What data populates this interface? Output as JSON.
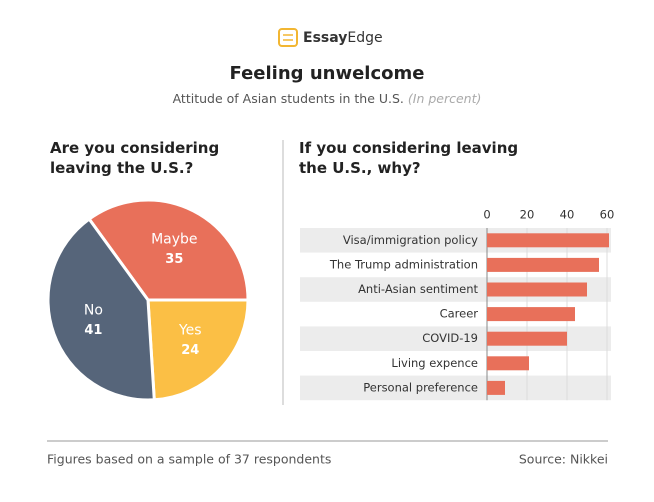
{
  "logo": {
    "bold": "Essay",
    "regular": "Edge"
  },
  "title": "Feeling unwelcome",
  "subtitle": "Attitude of Asian students in the U.S.",
  "subtitle_note": "(In percent)",
  "chart_data": [
    {
      "type": "pie",
      "title": "Are you considering leaving the U.S.?",
      "categories": [
        "Maybe",
        "Yes",
        "No"
      ],
      "values": [
        35,
        24,
        41
      ],
      "colors": [
        "#e8705a",
        "#fbbf45",
        "#56657a"
      ]
    },
    {
      "type": "hbar",
      "title": "If you considering leaving the U.S., why?",
      "categories": [
        "Visa/immigration policy",
        "The Trump administration",
        "Anti-Asian sentiment",
        "Career",
        "COVID-19",
        "Living expence",
        "Personal preference"
      ],
      "values": [
        61,
        56,
        50,
        44,
        40,
        21,
        9
      ],
      "color": "#e8705a",
      "xlim": [
        0,
        62
      ],
      "xticks": [
        0,
        20,
        40,
        60
      ],
      "grid": true
    }
  ],
  "footer": {
    "note": "Figures based on a sample of 37 respondents",
    "source": "Source: Nikkei"
  }
}
